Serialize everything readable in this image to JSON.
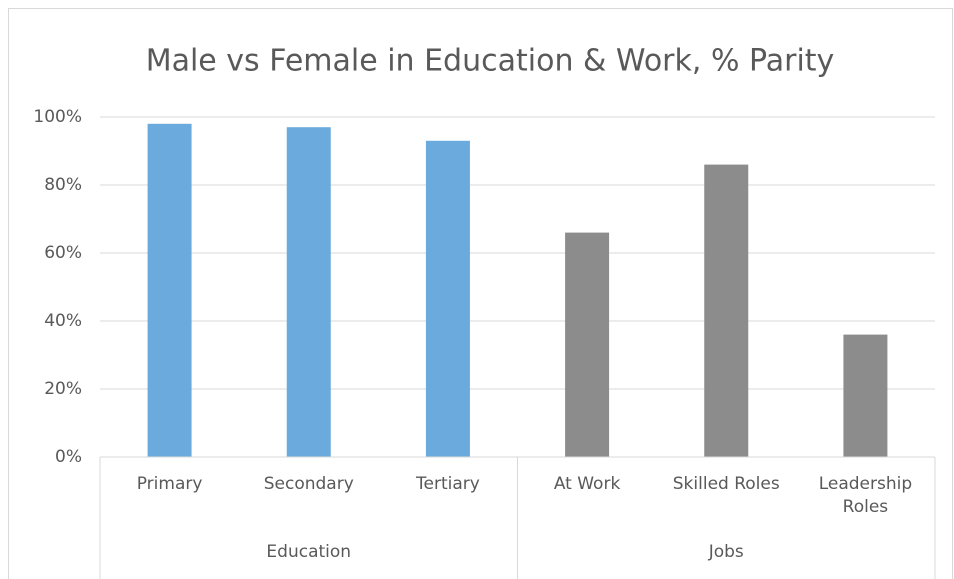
{
  "chart_data": {
    "type": "bar",
    "title": "Male vs Female in Education & Work, % Parity",
    "groups": [
      {
        "name": "Education",
        "categories": [
          "Primary",
          "Secondary",
          "Tertiary"
        ],
        "values": [
          98,
          97,
          93
        ],
        "color": "#6aaadc"
      },
      {
        "name": "Jobs",
        "categories": [
          "At Work",
          "Skilled Roles",
          "Leadership Roles"
        ],
        "values": [
          66,
          86,
          36
        ],
        "color": "#8c8c8c"
      }
    ],
    "ylim": [
      0,
      100
    ],
    "yticks": [
      {
        "value": 0,
        "label": "0%"
      },
      {
        "value": 20,
        "label": "20%"
      },
      {
        "value": 40,
        "label": "40%"
      },
      {
        "value": 60,
        "label": "60%"
      },
      {
        "value": 80,
        "label": "80%"
      },
      {
        "value": 100,
        "label": "100%"
      }
    ],
    "grid": true
  }
}
